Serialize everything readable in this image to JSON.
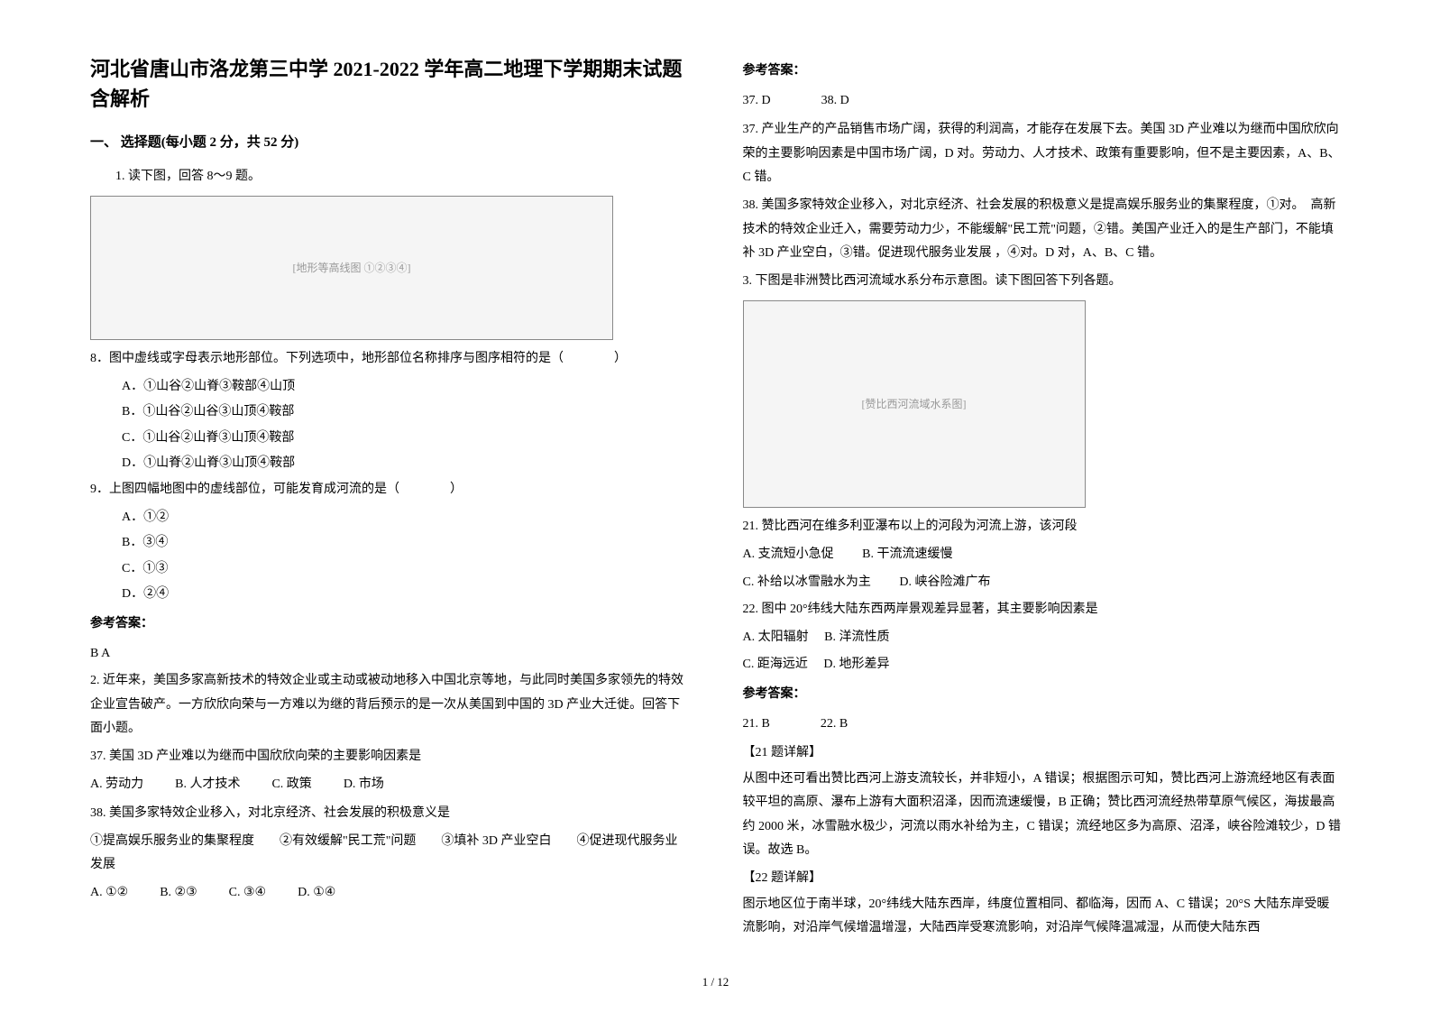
{
  "title": "河北省唐山市洛龙第三中学 2021-2022 学年高二地理下学期期末试题含解析",
  "section1_header": "一、 选择题(每小题 2 分，共 52 分)",
  "q1_intro": "1. 读下图，回答 8～9 题。",
  "figure_topo_label": "[地形等高线图 ①②③④]",
  "q8_stem": "8．图中虚线或字母表示地形部位。下列选项中，地形部位名称排序与图序相符的是（　　　　）",
  "q8_a": "A．①山谷②山脊③鞍部④山顶",
  "q8_b": "B．①山谷②山谷③山顶④鞍部",
  "q8_c": "C．①山谷②山脊③山顶④鞍部",
  "q8_d": "D．①山脊②山脊③山顶④鞍部",
  "q9_stem": "9．上图四幅地图中的虚线部位，可能发育成河流的是（　　　　）",
  "q9_a": "A．①②",
  "q9_b": "B．③④",
  "q9_c": "C．①③",
  "q9_d": "D．②④",
  "answer_header": "参考答案：",
  "ans_8_9": "B  A",
  "q2_intro": "2. 近年来，美国多家高新技术的特效企业或主动或被动地移入中国北京等地，与此同时美国多家领先的特效企业宣告破产。一方欣欣向荣与一方难以为继的背后预示的是一次从美国到中国的 3D 产业大迁徙。回答下面小题。",
  "q37_stem": "37.  美国 3D 产业难以为继而中国欣欣向荣的主要影响因素是",
  "q37_a": "A.  劳动力",
  "q37_b": "B.  人才技术",
  "q37_c": "C.  政策",
  "q37_d": "D.  市场",
  "q38_stem": "38.  美国多家特效企业移入，对北京经济、社会发展的积极意义是",
  "q38_items": "①提高娱乐服务业的集聚程度　　②有效缓解\"民工荒\"问题　　③填补 3D 产业空白　　④促进现代服务业发展",
  "q38_a": "A.  ①②",
  "q38_b": "B.  ②③",
  "q38_c": "C.  ③④",
  "q38_d": "D.  ①④",
  "ans_37": "37.  D",
  "ans_38": "38.  D",
  "exp_37": "37.  产业生产的产品销售市场广阔，获得的利润高，才能存在发展下去。美国 3D 产业难以为继而中国欣欣向荣的主要影响因素是中国市场广阔，D 对。劳动力、人才技术、政策有重要影响，但不是主要因素，A、B、C 错。",
  "exp_38": "38.  美国多家特效企业移入，对北京经济、社会发展的积极意义是提高娱乐服务业的集聚程度，①对。　高新技术的特效企业迁入，需要劳动力少，不能缓解\"民工荒\"问题，②错。美国产业迁入的是生产部门，不能填补 3D 产业空白，③错。促进现代服务业发展  ，④对。D 对，A、B、C 错。",
  "q3_intro": "3. 下图是非洲赞比西河流域水系分布示意图。读下图回答下列各题。",
  "figure_map_label": "[赞比西河流域水系图]",
  "q21_stem": "21.  赞比西河在维多利亚瀑布以上的河段为河流上游，该河段",
  "q21_a": "A.  支流短小急促",
  "q21_b": "B.  干流流速缓慢",
  "q21_c": "C.  补给以冰雪融水为主",
  "q21_d": "D.  峡谷险滩广布",
  "q22_stem": "22.  图中 20°纬线大陆东西两岸景观差异显著，其主要影响因素是",
  "q22_a": "A.  太阳辐射",
  "q22_b": "B.  洋流性质",
  "q22_c": "C.  距海远近",
  "q22_d": "D.  地形差异",
  "ans_21": "21.  B",
  "ans_22": "22.  B",
  "exp_21_header": "【21 题详解】",
  "exp_21": "从图中还可看出赞比西河上游支流较长，并非短小，A 错误；根据图示可知，赞比西河上游流经地区有表面较平坦的高原、瀑布上游有大面积沼泽，因而流速缓慢，B 正确；赞比西河流经热带草原气候区，海拔最高约 2000 米，冰雪融水极少，河流以雨水补给为主，C 错误；流经地区多为高原、沼泽，峡谷险滩较少，D 错误。故选 B。",
  "exp_22_header": "【22 题详解】",
  "exp_22": "图示地区位于南半球，20°纬线大陆东西岸，纬度位置相同、都临海，因而 A、C 错误；20°S 大陆东岸受暖流影响，对沿岸气候增温增湿，大陆西岸受寒流影响，对沿岸气候降温减湿，从而使大陆东西",
  "page_number": "1 / 12"
}
